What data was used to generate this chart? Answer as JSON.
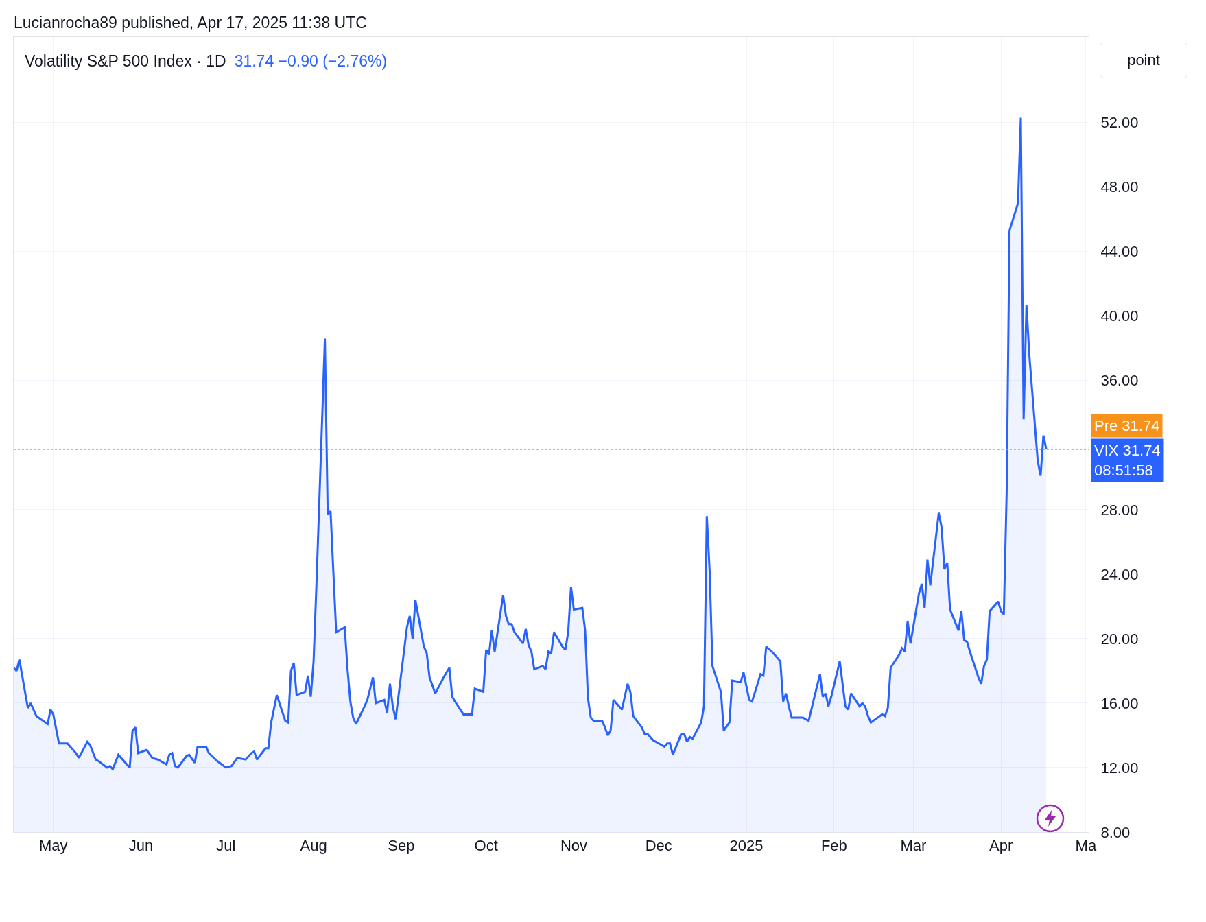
{
  "chart_data": {
    "type": "area",
    "title": "Volatility S&P 500 Index · 1D",
    "subtitle": "31.74 −0.90 (−2.76%)",
    "x": [
      "2024-04-17",
      "2024-04-18",
      "2024-04-19",
      "2024-04-22",
      "2024-04-23",
      "2024-04-25",
      "2024-04-29",
      "2024-04-30",
      "2024-05-01",
      "2024-05-03",
      "2024-05-06",
      "2024-05-09",
      "2024-05-10",
      "2024-05-13",
      "2024-05-14",
      "2024-05-16",
      "2024-05-17",
      "2024-05-20",
      "2024-05-21",
      "2024-05-22",
      "2024-05-24",
      "2024-05-28",
      "2024-05-29",
      "2024-05-30",
      "2024-05-31",
      "2024-06-03",
      "2024-06-05",
      "2024-06-07",
      "2024-06-10",
      "2024-06-11",
      "2024-06-12",
      "2024-06-13",
      "2024-06-14",
      "2024-06-17",
      "2024-06-18",
      "2024-06-20",
      "2024-06-21",
      "2024-06-24",
      "2024-06-25",
      "2024-06-28",
      "2024-07-01",
      "2024-07-03",
      "2024-07-05",
      "2024-07-08",
      "2024-07-10",
      "2024-07-11",
      "2024-07-12",
      "2024-07-15",
      "2024-07-16",
      "2024-07-17",
      "2024-07-19",
      "2024-07-22",
      "2024-07-23",
      "2024-07-24",
      "2024-07-25",
      "2024-07-26",
      "2024-07-29",
      "2024-07-30",
      "2024-07-31",
      "2024-08-01",
      "2024-08-02",
      "2024-08-05",
      "2024-08-06",
      "2024-08-07",
      "2024-08-08",
      "2024-08-09",
      "2024-08-12",
      "2024-08-13",
      "2024-08-14",
      "2024-08-15",
      "2024-08-16",
      "2024-08-19",
      "2024-08-20",
      "2024-08-22",
      "2024-08-23",
      "2024-08-26",
      "2024-08-27",
      "2024-08-28",
      "2024-08-29",
      "2024-08-30",
      "2024-09-03",
      "2024-09-04",
      "2024-09-05",
      "2024-09-06",
      "2024-09-09",
      "2024-09-10",
      "2024-09-11",
      "2024-09-13",
      "2024-09-16",
      "2024-09-18",
      "2024-09-19",
      "2024-09-20",
      "2024-09-23",
      "2024-09-26",
      "2024-09-27",
      "2024-09-30",
      "2024-10-01",
      "2024-10-02",
      "2024-10-03",
      "2024-10-04",
      "2024-10-07",
      "2024-10-08",
      "2024-10-09",
      "2024-10-10",
      "2024-10-11",
      "2024-10-14",
      "2024-10-15",
      "2024-10-16",
      "2024-10-17",
      "2024-10-18",
      "2024-10-21",
      "2024-10-22",
      "2024-10-23",
      "2024-10-24",
      "2024-10-25",
      "2024-10-28",
      "2024-10-29",
      "2024-10-30",
      "2024-10-31",
      "2024-11-01",
      "2024-11-04",
      "2024-11-05",
      "2024-11-06",
      "2024-11-07",
      "2024-11-08",
      "2024-11-11",
      "2024-11-12",
      "2024-11-13",
      "2024-11-14",
      "2024-11-15",
      "2024-11-18",
      "2024-11-20",
      "2024-11-21",
      "2024-11-22",
      "2024-11-25",
      "2024-11-26",
      "2024-11-27",
      "2024-11-29",
      "2024-12-02",
      "2024-12-03",
      "2024-12-04",
      "2024-12-05",
      "2024-12-06",
      "2024-12-09",
      "2024-12-10",
      "2024-12-11",
      "2024-12-12",
      "2024-12-13",
      "2024-12-16",
      "2024-12-17",
      "2024-12-18",
      "2024-12-19",
      "2024-12-20",
      "2024-12-23",
      "2024-12-24",
      "2024-12-26",
      "2024-12-27",
      "2024-12-30",
      "2024-12-31",
      "2025-01-02",
      "2025-01-03",
      "2025-01-06",
      "2025-01-07",
      "2025-01-08",
      "2025-01-10",
      "2025-01-13",
      "2025-01-14",
      "2025-01-15",
      "2025-01-16",
      "2025-01-17",
      "2025-01-21",
      "2025-01-22",
      "2025-01-23",
      "2025-01-27",
      "2025-01-28",
      "2025-01-29",
      "2025-01-30",
      "2025-01-31",
      "2025-02-03",
      "2025-02-04",
      "2025-02-05",
      "2025-02-06",
      "2025-02-07",
      "2025-02-10",
      "2025-02-11",
      "2025-02-12",
      "2025-02-13",
      "2025-02-14",
      "2025-02-18",
      "2025-02-19",
      "2025-02-20",
      "2025-02-21",
      "2025-02-24",
      "2025-02-25",
      "2025-02-26",
      "2025-02-27",
      "2025-02-28",
      "2025-03-03",
      "2025-03-04",
      "2025-03-05",
      "2025-03-06",
      "2025-03-07",
      "2025-03-10",
      "2025-03-11",
      "2025-03-12",
      "2025-03-13",
      "2025-03-14",
      "2025-03-17",
      "2025-03-18",
      "2025-03-19",
      "2025-03-20",
      "2025-03-21",
      "2025-03-24",
      "2025-03-25",
      "2025-03-26",
      "2025-03-27",
      "2025-03-28",
      "2025-03-31",
      "2025-04-01",
      "2025-04-02",
      "2025-04-03",
      "2025-04-04",
      "2025-04-07",
      "2025-04-08",
      "2025-04-09",
      "2025-04-10",
      "2025-04-11",
      "2025-04-14",
      "2025-04-15",
      "2025-04-16",
      "2025-04-17"
    ],
    "series": [
      {
        "color": "#2962ff",
        "values": [
          18.2,
          18.0,
          18.7,
          15.7,
          16.0,
          15.2,
          14.7,
          15.6,
          15.3,
          13.5,
          13.5,
          12.9,
          12.6,
          13.6,
          13.4,
          12.5,
          12.4,
          12.0,
          12.1,
          11.9,
          12.8,
          12.0,
          14.3,
          14.5,
          12.9,
          13.1,
          12.6,
          12.5,
          12.2,
          12.8,
          12.9,
          12.1,
          12.0,
          12.7,
          12.8,
          12.3,
          13.3,
          13.3,
          12.9,
          12.4,
          12.0,
          12.1,
          12.6,
          12.5,
          12.9,
          13.0,
          12.5,
          13.2,
          13.2,
          14.8,
          16.5,
          14.9,
          14.8,
          18.0,
          18.5,
          16.5,
          16.7,
          17.7,
          16.4,
          18.6,
          23.3,
          38.6,
          27.7,
          27.9,
          24.1,
          20.4,
          20.7,
          18.1,
          16.1,
          15.1,
          14.7,
          15.8,
          16.2,
          17.6,
          16.0,
          16.2,
          15.4,
          17.2,
          15.8,
          15.0,
          20.7,
          21.4,
          20.0,
          22.4,
          19.5,
          19.1,
          17.6,
          16.6,
          17.6,
          18.2,
          16.4,
          16.1,
          15.3,
          15.3,
          16.9,
          16.7,
          19.3,
          19.0,
          20.5,
          19.2,
          22.7,
          21.4,
          20.9,
          20.9,
          20.4,
          19.7,
          20.6,
          19.6,
          19.2,
          18.1,
          18.3,
          18.1,
          19.2,
          19.1,
          20.4,
          19.5,
          19.3,
          20.4,
          23.2,
          21.8,
          21.9,
          20.5,
          16.3,
          15.1,
          14.9,
          14.9,
          14.5,
          14.0,
          14.3,
          16.2,
          15.6,
          17.2,
          16.7,
          15.2,
          14.5,
          14.1,
          14.1,
          13.7,
          13.4,
          13.3,
          13.5,
          13.5,
          12.8,
          14.1,
          14.1,
          13.6,
          13.9,
          13.8,
          14.8,
          15.8,
          27.6,
          24.2,
          18.3,
          16.7,
          14.3,
          14.8,
          17.4,
          17.3,
          17.9,
          16.2,
          16.1,
          17.8,
          17.7,
          19.5,
          19.2,
          18.6,
          16.1,
          16.6,
          15.8,
          15.1,
          15.1,
          15.0,
          14.9,
          17.8,
          16.4,
          16.6,
          15.8,
          16.4,
          18.6,
          17.2,
          15.8,
          15.6,
          16.6,
          15.8,
          16.0,
          15.8,
          15.2,
          14.8,
          15.3,
          15.2,
          15.7,
          18.2,
          19.0,
          19.4,
          19.2,
          21.1,
          19.7,
          22.8,
          23.4,
          21.9,
          24.9,
          23.3,
          27.8,
          26.9,
          24.3,
          24.7,
          21.8,
          20.5,
          21.7,
          19.9,
          19.8,
          19.2,
          17.6,
          17.2,
          18.3,
          18.7,
          21.7,
          22.3,
          21.7,
          21.5,
          29.1,
          45.3,
          47.0,
          52.3,
          33.6,
          40.7,
          37.6,
          31.0,
          30.1,
          32.6,
          31.74
        ]
      }
    ],
    "xlim": [
      "2024-04-17",
      "2025-05-02"
    ],
    "xticks": [
      {
        "value": "2024-05-01",
        "label": "May"
      },
      {
        "value": "2024-06-01",
        "label": "Jun"
      },
      {
        "value": "2024-07-01",
        "label": "Jul"
      },
      {
        "value": "2024-08-01",
        "label": "Aug"
      },
      {
        "value": "2024-09-01",
        "label": "Sep"
      },
      {
        "value": "2024-10-01",
        "label": "Oct"
      },
      {
        "value": "2024-11-01",
        "label": "Nov"
      },
      {
        "value": "2024-12-01",
        "label": "Dec"
      },
      {
        "value": "2025-01-01",
        "label": "2025"
      },
      {
        "value": "2025-02-01",
        "label": "Feb"
      },
      {
        "value": "2025-03-01",
        "label": "Mar"
      },
      {
        "value": "2025-04-01",
        "label": "Apr"
      },
      {
        "value": "2025-05-01",
        "label": "Ma"
      }
    ],
    "ylim": [
      8,
      57.3
    ],
    "yticks": [
      {
        "value": 8,
        "label": "8.00"
      },
      {
        "value": 12,
        "label": "12.00"
      },
      {
        "value": 16,
        "label": "16.00"
      },
      {
        "value": 20,
        "label": "20.00"
      },
      {
        "value": 24,
        "label": "24.00"
      },
      {
        "value": 28,
        "label": "28.00"
      },
      {
        "value": 32,
        "label": null
      },
      {
        "value": 36,
        "label": "36.00"
      },
      {
        "value": 40,
        "label": "40.00"
      },
      {
        "value": 44,
        "label": "44.00"
      },
      {
        "value": 48,
        "label": "48.00"
      },
      {
        "value": 52,
        "label": "52.00"
      }
    ],
    "grid": true,
    "ref_lines": [
      {
        "axis": "y",
        "value": 31.74,
        "label": "Pre 31.74",
        "color": "#f7931a",
        "line_style": "dotted"
      }
    ],
    "annotations": [
      "Lucianrocha89 published, Apr 17, 2025 11:38 UTC",
      "point",
      "VIX 31.74\n08:51:58"
    ]
  }
}
